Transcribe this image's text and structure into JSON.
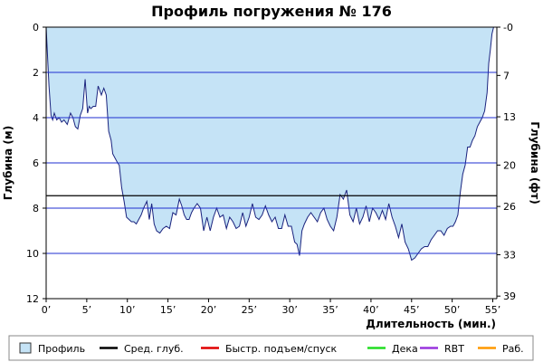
{
  "chart_data": {
    "type": "area",
    "title": "Профиль погружения № 176",
    "xlabel": "Длительность (мин.)",
    "ylabel_left": "Глубина (м)",
    "ylabel_right": "Глубина (фт)",
    "xlim": [
      0,
      55.5
    ],
    "ylim": [
      12,
      0
    ],
    "x_ticks": [
      0,
      5,
      10,
      15,
      20,
      25,
      30,
      35,
      40,
      45,
      50,
      55
    ],
    "x_tick_labels": [
      "0’",
      "5’",
      "10’",
      "15’",
      "20’",
      "25’",
      "30’",
      "35’",
      "40’",
      "45’",
      "50’",
      "55’"
    ],
    "y_ticks_left": [
      0,
      2,
      4,
      6,
      8,
      10,
      12
    ],
    "y_tick_labels_left": [
      "0",
      "2",
      "4",
      "6",
      "8",
      "10",
      "12"
    ],
    "y_ticks_right": [
      0,
      7,
      13,
      20,
      26,
      33,
      39
    ],
    "y_tick_labels_right": [
      "-0",
      "7",
      "13",
      "20",
      "26",
      "33",
      "39"
    ],
    "grid": true,
    "grid_lines_m": [
      2,
      4,
      6,
      8,
      10
    ],
    "average_depth_m": 7.45,
    "profile": {
      "name": "Профиль",
      "time_min": [
        0,
        0.2,
        0.35,
        0.6,
        0.8,
        1.0,
        1.3,
        1.6,
        1.9,
        2.2,
        2.6,
        3.0,
        3.3,
        3.6,
        3.9,
        4.2,
        4.5,
        4.8,
        5.1,
        5.3,
        5.5,
        5.8,
        6.1,
        6.4,
        6.8,
        7.1,
        7.4,
        7.7,
        8.0,
        8.2,
        8.5,
        8.8,
        9.0,
        9.3,
        9.6,
        9.9,
        10.2,
        10.5,
        10.8,
        11.1,
        11.4,
        11.7,
        12.0,
        12.4,
        12.7,
        13.0,
        13.3,
        13.6,
        14.0,
        14.4,
        14.8,
        15.2,
        15.6,
        16.0,
        16.4,
        16.7,
        17.0,
        17.3,
        17.6,
        17.9,
        18.2,
        18.6,
        19.0,
        19.4,
        19.8,
        20.2,
        20.6,
        21.0,
        21.4,
        21.8,
        22.2,
        22.6,
        23.0,
        23.4,
        23.8,
        24.2,
        24.6,
        25.0,
        25.4,
        25.8,
        26.2,
        26.6,
        27.0,
        27.4,
        27.8,
        28.2,
        28.6,
        29.0,
        29.4,
        29.8,
        30.2,
        30.6,
        30.9,
        31.2,
        31.5,
        31.8,
        32.2,
        32.6,
        33.0,
        33.4,
        33.8,
        34.2,
        34.6,
        35.0,
        35.4,
        35.8,
        36.2,
        36.6,
        37.0,
        37.4,
        37.8,
        38.2,
        38.6,
        39.0,
        39.4,
        39.8,
        40.2,
        40.6,
        41.0,
        41.4,
        41.8,
        42.2,
        42.6,
        43.0,
        43.4,
        43.8,
        44.2,
        44.6,
        45.0,
        45.4,
        45.8,
        46.2,
        46.6,
        47.0,
        47.4,
        47.8,
        48.2,
        48.6,
        49.0,
        49.4,
        49.8,
        50.1,
        50.4,
        50.7,
        51.0,
        51.3,
        51.6,
        51.9,
        52.2,
        52.5,
        52.8,
        53.1,
        53.4,
        53.7,
        54.0,
        54.3,
        54.5,
        54.7,
        54.9,
        55.1,
        55.3,
        55.5
      ],
      "depth_m": [
        0,
        1.5,
        2.6,
        3.9,
        4.1,
        3.8,
        4.1,
        4.0,
        4.2,
        4.1,
        4.3,
        3.8,
        4.0,
        4.4,
        4.5,
        3.9,
        3.6,
        2.3,
        3.8,
        3.5,
        3.6,
        3.5,
        3.5,
        2.6,
        3.0,
        2.7,
        3.0,
        4.6,
        5.0,
        5.6,
        5.8,
        6.0,
        6.1,
        7.1,
        7.7,
        8.4,
        8.5,
        8.6,
        8.6,
        8.7,
        8.5,
        8.3,
        8.0,
        7.7,
        8.5,
        7.8,
        8.7,
        9.0,
        9.1,
        8.9,
        8.8,
        8.9,
        8.2,
        8.3,
        7.6,
        7.9,
        8.3,
        8.5,
        8.5,
        8.2,
        8.0,
        7.8,
        8.0,
        9.0,
        8.4,
        9.0,
        8.4,
        8.0,
        8.4,
        8.3,
        8.9,
        8.4,
        8.6,
        8.9,
        8.8,
        8.2,
        8.8,
        8.4,
        7.8,
        8.4,
        8.5,
        8.3,
        7.9,
        8.3,
        8.6,
        8.4,
        8.9,
        8.9,
        8.3,
        8.8,
        8.8,
        9.5,
        9.6,
        10.1,
        9.0,
        8.7,
        8.4,
        8.2,
        8.4,
        8.6,
        8.2,
        8.0,
        8.5,
        8.8,
        9.0,
        8.4,
        7.4,
        7.6,
        7.2,
        8.3,
        8.6,
        8.0,
        8.7,
        8.4,
        7.9,
        8.6,
        8.0,
        8.2,
        8.5,
        8.1,
        8.5,
        7.8,
        8.4,
        8.8,
        9.3,
        8.7,
        9.5,
        9.8,
        10.3,
        10.2,
        10.0,
        9.8,
        9.7,
        9.7,
        9.4,
        9.2,
        9.0,
        9.0,
        9.2,
        8.9,
        8.8,
        8.8,
        8.6,
        8.3,
        7.3,
        6.5,
        6.1,
        5.3,
        5.3,
        5.0,
        4.8,
        4.4,
        4.2,
        4.0,
        3.7,
        2.9,
        1.6,
        1.0,
        0.3,
        0.0,
        0.0,
        0.0
      ]
    },
    "legend": [
      {
        "label": "Профиль",
        "marker": "box",
        "color": "#c5e3f6"
      },
      {
        "label": "Сред. глуб.",
        "marker": "line",
        "color": "#000000"
      },
      {
        "label": "Быстр. подъем/спуск",
        "marker": "line",
        "color": "#e00000"
      },
      {
        "label": "Дека",
        "marker": "line",
        "color": "#22dd22"
      },
      {
        "label": "RBT",
        "marker": "line",
        "color": "#9933dd"
      },
      {
        "label": "Раб.",
        "marker": "line",
        "color": "#ff9900"
      }
    ],
    "legend_position": "bottom",
    "colors": {
      "fill": "#c5e3f6",
      "profile_line": "#1a237e",
      "grid": "#1f2fd0",
      "average": "#000000"
    }
  }
}
